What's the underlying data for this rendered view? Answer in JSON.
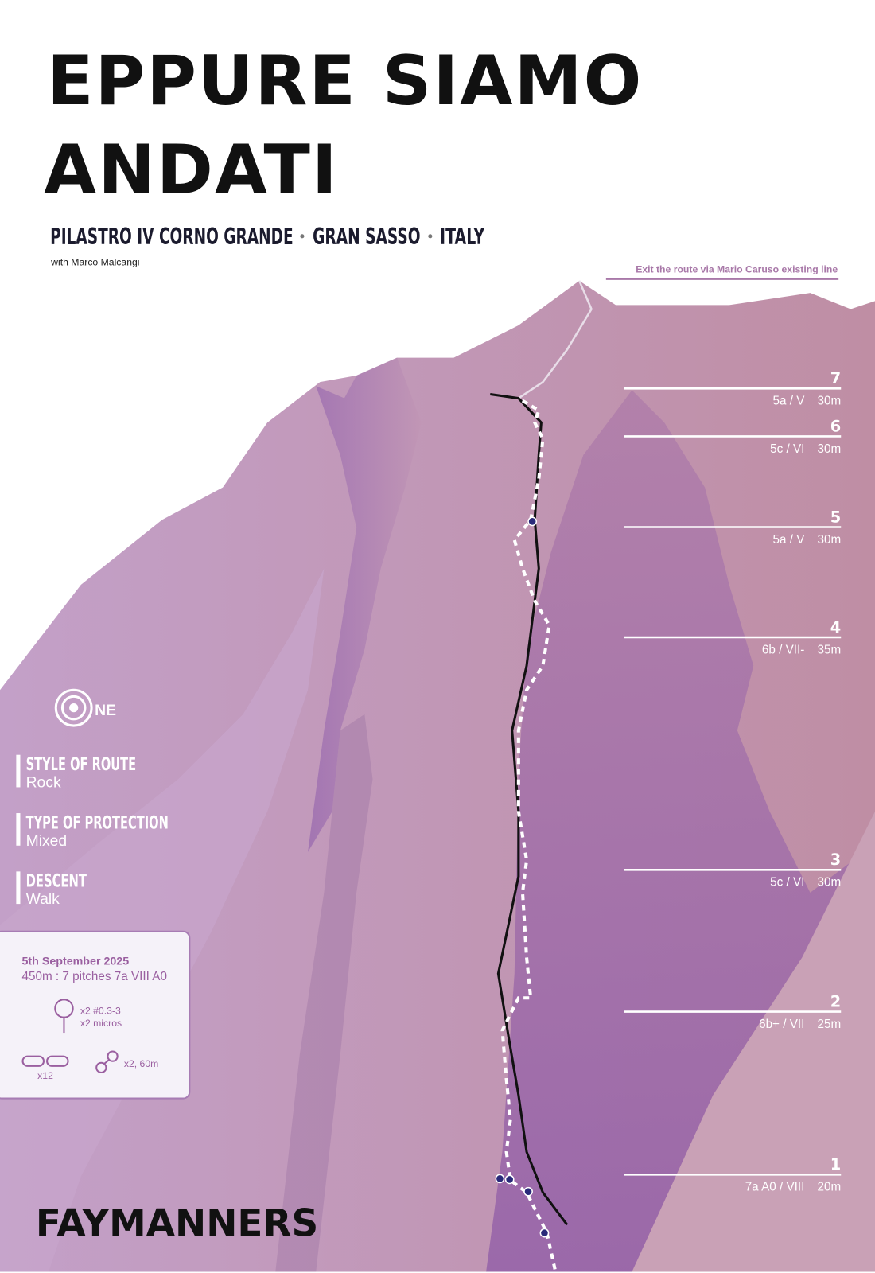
{
  "header": {
    "title_lines": [
      "EPPURE SIAMO",
      "ANDATI"
    ],
    "location": [
      "PILASTRO IV CORNO GRANDE",
      "GRAN SASSO",
      "ITALY"
    ],
    "credit": "with Marco Malcangi"
  },
  "exit_note": "Exit the route via Mario Caruso existing line",
  "pitches": [
    {
      "number": "7",
      "grade": "5a / V",
      "length": "30m"
    },
    {
      "number": "6",
      "grade": "5c / VI",
      "length": "30m"
    },
    {
      "number": "5",
      "grade": "5a / V",
      "length": "30m"
    },
    {
      "number": "4",
      "grade": "6b / VII-",
      "length": "35m"
    },
    {
      "number": "3",
      "grade": "5c / VI",
      "length": "30m"
    },
    {
      "number": "2",
      "grade": "6b+ / VII",
      "length": "25m"
    },
    {
      "number": "1",
      "grade": "7a A0 / VIII",
      "length": "20m"
    }
  ],
  "aspect": "NE",
  "info": [
    {
      "heading": "STYLE OF ROUTE",
      "value": "Rock"
    },
    {
      "heading": "TYPE OF PROTECTION",
      "value": "Mixed"
    },
    {
      "heading": "DESCENT",
      "value": "Walk"
    }
  ],
  "card": {
    "date": "5th September 2025",
    "summary": "450m : 7 pitches 7a VIII A0",
    "cams": [
      "x2 #0.3-3",
      "x2 micros"
    ],
    "quickdraws": "x12",
    "ropes": "x2, 60m"
  },
  "brand": "FAYMANNERS"
}
